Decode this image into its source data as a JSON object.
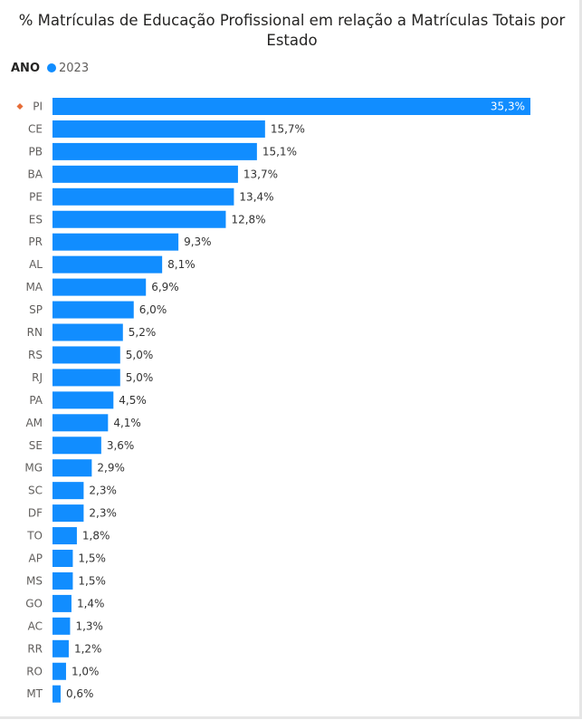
{
  "chart_data": {
    "type": "bar",
    "orientation": "horizontal",
    "title": "% Matrículas de Educação Profissional em relação a Matrículas Totais por Estado",
    "legend": {
      "title": "ANO",
      "placement": "top-left"
    },
    "categories": [
      "PI",
      "CE",
      "PB",
      "BA",
      "PE",
      "ES",
      "PR",
      "AL",
      "MA",
      "SP",
      "RN",
      "RS",
      "RJ",
      "PA",
      "AM",
      "SE",
      "MG",
      "SC",
      "DF",
      "TO",
      "AP",
      "MS",
      "GO",
      "AC",
      "RR",
      "RO",
      "MT"
    ],
    "series": [
      {
        "name": "2023",
        "values": [
          35.3,
          15.7,
          15.1,
          13.7,
          13.4,
          12.8,
          9.3,
          8.1,
          6.9,
          6.0,
          5.2,
          5.0,
          5.0,
          4.5,
          4.1,
          3.6,
          2.9,
          2.3,
          2.3,
          1.8,
          1.5,
          1.5,
          1.4,
          1.3,
          1.2,
          1.0,
          0.6
        ],
        "labels": [
          "35,3%",
          "15,7%",
          "15,1%",
          "13,7%",
          "13,4%",
          "12,8%",
          "9,3%",
          "8,1%",
          "6,9%",
          "6,0%",
          "5,2%",
          "5,0%",
          "5,0%",
          "4,5%",
          "4,1%",
          "3,6%",
          "2,9%",
          "2,3%",
          "2,3%",
          "1,8%",
          "1,5%",
          "1,5%",
          "1,4%",
          "1,3%",
          "1,2%",
          "1,0%",
          "0,6%"
        ]
      }
    ],
    "xlim": [
      0,
      35.3
    ],
    "grid": false,
    "highlighted_category": "PI",
    "colors": {
      "bar": "#118dff",
      "highlight_marker": "#e66c37",
      "axis_text": "#605e5c",
      "title": "#252423"
    }
  }
}
